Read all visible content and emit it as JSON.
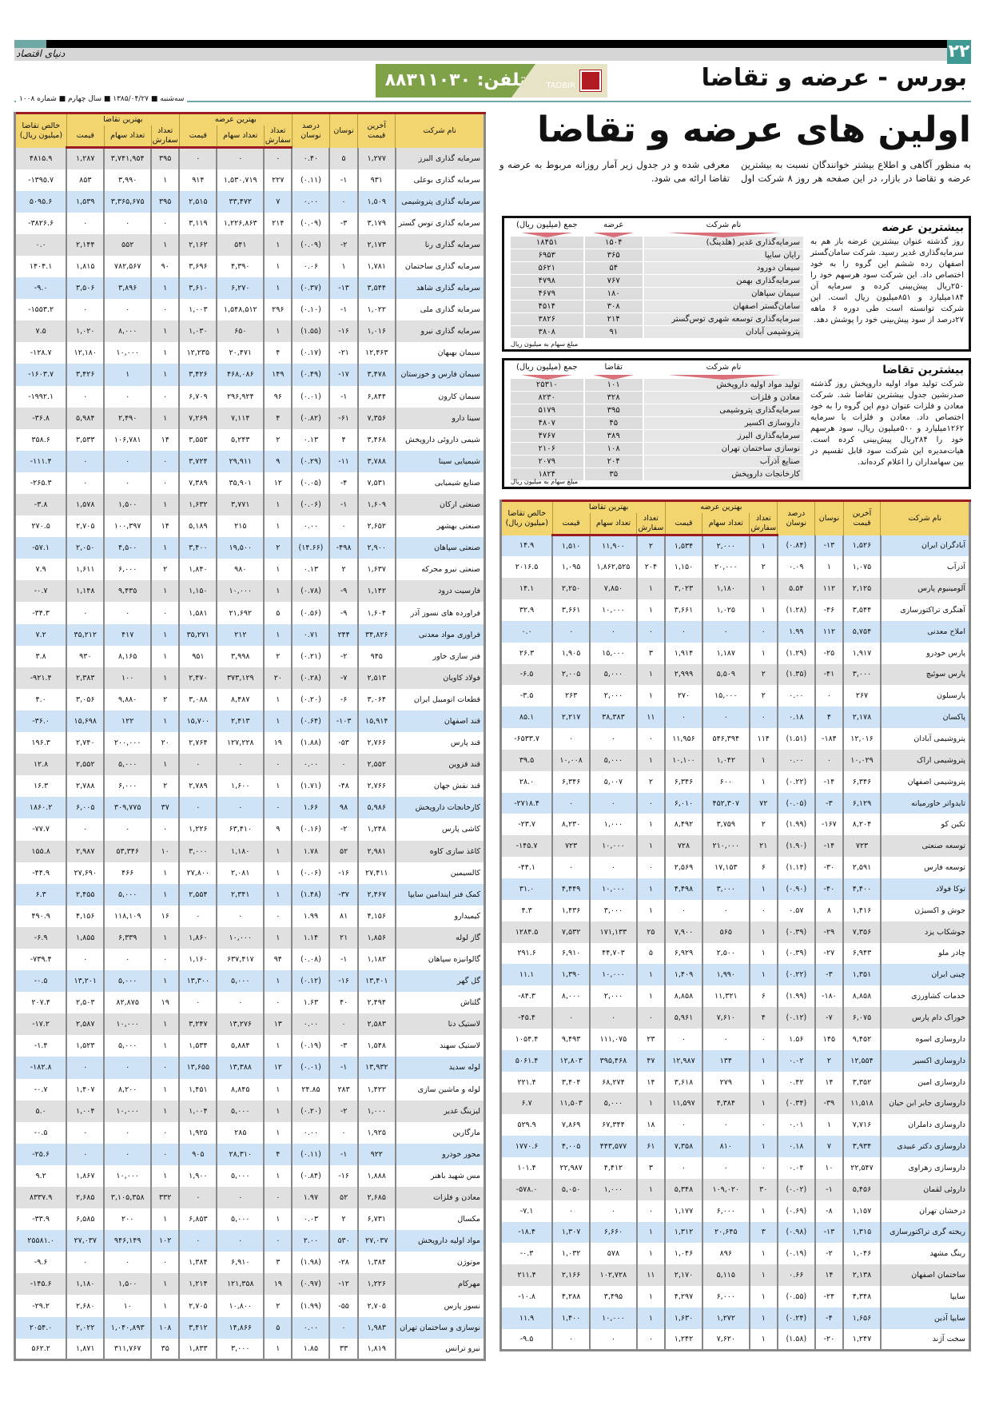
{
  "header": {
    "page_number": "۲۲",
    "logo": "دنیای اقتصاد",
    "section_title": "بورس - عرضه و تقاضا",
    "phone": "تلفن: ۸۸۳۱۱۰۳۰",
    "sponsor": "TADBIR",
    "issue": "سه‌شنبه ■ ۱۳۸۵/۰۴/۲۷ ■ سال چهارم ■ شماره ۱۰۰۸"
  },
  "headline": "اولین های عرضه و تقاضا",
  "intro": "به منظور آگاهی و اطلاع بیشتر خوانندگان نسبت به بیشترین عرضه و تقاضا در بازار، در این صفحه هر روز ۸ شرکت اول معرفی شده و در جدول زیر آمار روزانه مربوط به عرضه و تقاضا ارائه می شود.",
  "colors": {
    "accent": "#3f9a94",
    "header_yellow": "#f2d56e",
    "header_border": "#9b1c22",
    "row_gray": "#e0e0e0",
    "row_blue": "#cfe3f6",
    "banner_green": "#7fa248"
  },
  "supply_box": {
    "title": "بیشترین عرضه",
    "text": "روز گذشته عنوان بیشترین عرضه باز هم به سرمایه‌گذاری غدیر رسید. شرکت سامان‌گستر اصفهان رده ششم این گروه را به خود اختصاص داد. این شرکت سود هرسهم خود را ۲۵۰ریال پیش‌بینی کرده و سرمایه آن ۱۸۴میلیارد و ۸۵۱میلیون ریال است. این شرکت توانسته است طی دوره ۶ ماهه ۲۷درصد از سود پیش‌بینی خود را پوشش دهد.",
    "note": "مبلغ سهام به میلیون ریال",
    "columns": [
      "نام شرکت",
      "عرضه",
      "جمع (میلیون ریال)"
    ],
    "rows": [
      [
        "سرمایه‌گذاری غدیر (هلدینگ)",
        "۱۵۰۴",
        "۱۸۴۵۱"
      ],
      [
        "رایان سایپا",
        "۳۶۵",
        "۶۹۵۳"
      ],
      [
        "سیمان دورود",
        "۵۴",
        "۵۶۲۱"
      ],
      [
        "سرمایه‌گذاری بهمن",
        "۷۶۷",
        "۴۷۹۸"
      ],
      [
        "سیمان سپاهان",
        "۱۸۰",
        "۴۶۷۹"
      ],
      [
        "سامان‌گستر اصفهان",
        "۳۰۸",
        "۴۵۱۴"
      ],
      [
        "سرمایه‌گذاری توسعه شهری توس‌گستر",
        "۲۱۴",
        "۳۸۲۶"
      ],
      [
        "پتروشیمی آبادان",
        "۹۱",
        "۳۸۰۸"
      ]
    ]
  },
  "demand_box": {
    "title": "بیشترین تقاضا",
    "text": "شرکت تولید مواد اولیه داروپخش روز گذشته صدرنشین جدول بیشترین تقاضا شد. شرکت معادن و فلزات عنوان دوم این گروه را به خود اختصاص داد. معادن و فلزات با سرمایه ۱۲۶۲میلیارد و ۵۰۰میلیون ریال، سود هرسهم خود را ۲۸۴ریال پیش‌بینی کرده است. هیات‌مدیره این شرکت سود قابل تقسیم در بین سهامداران را اعلام کرده‌اند.",
    "note": "مبلغ سهام به میلیون ریال",
    "columns": [
      "نام شرکت",
      "تقاضا",
      "جمع (میلیون ریال)"
    ],
    "rows": [
      [
        "تولید مواد اولیه داروپخش",
        "۱۰۱",
        "۲۵۳۱۰"
      ],
      [
        "معادن و فلزات",
        "۳۲۸",
        "۸۲۳۰"
      ],
      [
        "سرمایه‌گذاری پتروشیمی",
        "۳۹۵",
        "۵۱۷۹"
      ],
      [
        "داروسازی اکسیر",
        "۴۵",
        "۴۸۰۷"
      ],
      [
        "سرمایه‌گذاری البرز",
        "۳۸۹",
        "۴۷۶۷"
      ],
      [
        "نوسازی ساختمان تهران",
        "۱۰۸",
        "۲۱۰۶"
      ],
      [
        "صنایع آذرآب",
        "۲۰۴",
        "۲۰۷۹"
      ],
      [
        "کارخانجات داروپخش",
        "۳۵",
        "۱۸۲۴"
      ]
    ]
  },
  "table_headers": {
    "name": "نام شرکت",
    "last_price": "آخرین قیمت",
    "change": "نوسان",
    "change_pct": "درصد نوسان",
    "best_supply": "بهترین عرضه",
    "best_demand": "بهترین تقاضا",
    "order_count": "تعداد سفارش",
    "share_count": "تعداد سهام",
    "price": "قیمت",
    "net_demand": "خالص تقاضا (میلیون ریال)"
  },
  "left_table": [
    [
      "سرمایه گذاری البرز",
      "۱,۲۷۷",
      "۵",
      "۰.۴۰",
      "۰",
      "۰",
      "۰",
      "۳۹۵",
      "۳,۷۴۱,۹۵۴",
      "۱,۲۸۷",
      "۴۸۱۵.۹"
    ],
    [
      "سرمایه گذاری بوعلی",
      "۹۳۱",
      "-۱",
      "(۰.۱۱)",
      "۲۲۷",
      "۱,۵۳۰,۷۱۹",
      "۹۱۴",
      "۱",
      "۳,۹۹۰",
      "۸۵۳",
      "-۱۳۹۵.۷"
    ],
    [
      "سرمایه گذاری پتروشیمی",
      "۱,۵۰۹",
      "۰",
      "۰.۰۰",
      "۷",
      "۳۳,۴۷۲",
      "۲,۵۱۵",
      "۳۹۵",
      "۳,۳۶۵,۶۷۵",
      "۱,۵۳۹",
      "۵۰۹۵.۶"
    ],
    [
      "سرمایه گذاری توس گستر",
      "۳,۱۷۹",
      "-۳",
      "(۰.۰۹)",
      "۲۱۴",
      "۱,۲۲۶,۸۶۳",
      "۳,۱۱۹",
      "۰",
      "۰",
      "۰",
      "-۳۸۲۶.۶"
    ],
    [
      "سرمایه گذاری رنا",
      "۲,۱۷۳",
      "-۲",
      "(۰.۰۹)",
      "۱",
      "۵۴۱",
      "۲,۱۶۲",
      "۱",
      "۵۵۲",
      "۲,۱۴۴",
      "۰.۰"
    ],
    [
      "سرمایه گذاری ساختمان",
      "۱,۷۸۱",
      "۱",
      "۰.۰۶",
      "۱",
      "۴,۳۹۰",
      "۳,۶۹۶",
      "۹۰",
      "۷۸۲,۵۶۷",
      "۱,۸۱۵",
      "۱۴۰۴.۱"
    ],
    [
      "سرمایه گذاری شاهد",
      "۳,۵۴۴",
      "-۱۳",
      "(۰.۳۷)",
      "۱",
      "۶,۲۷۰",
      "۳,۶۱۰",
      "۱",
      "۳,۸۹۶",
      "۳,۵۰۶",
      "-۹.۰"
    ],
    [
      "سرمایه گذاری ملی",
      "۱,۰۲۲",
      "-۱",
      "(۰.۱۰)",
      "۲۹۶",
      "۱,۵۴۸,۵۱۲",
      "۱,۰۰۳",
      "۰",
      "۰",
      "۰",
      "-۱۵۵۳.۲"
    ],
    [
      "سرمایه گذاری نیرو",
      "۱,۰۱۶",
      "-۱۶",
      "(۱.۵۵)",
      "۱",
      "۶۵۰",
      "۱,۰۳۰",
      "۱",
      "۸,۰۰۰",
      "۱,۰۲۰",
      "۷.۵"
    ],
    [
      "سیمان بهبهان",
      "۱۲,۴۶۳",
      "-۲۱",
      "(۰.۱۷)",
      "۴",
      "۲۰,۴۷۱",
      "۱۲,۲۳۵",
      "۱",
      "۱۰,۰۰۰",
      "۱۲,۱۸۰",
      "-۱۲۸.۷"
    ],
    [
      "سیمان فارس و خوزستان",
      "۳,۴۷۸",
      "-۱۷",
      "(۰.۴۹)",
      "۱۴۹",
      "۴۶۸,۰۸۶",
      "۳,۴۲۶",
      "۱",
      "۱",
      "۳,۴۲۶",
      "-۱۶۰۳.۷"
    ],
    [
      "سیمان کارون",
      "۶,۸۴۴",
      "-۱",
      "(۰.۰۱)",
      "۹۶",
      "۲۹۶,۹۲۴",
      "۶,۷۰۹",
      "۰",
      "۰",
      "۰",
      "-۱۹۹۲.۱"
    ],
    [
      "سینا دارو",
      "۷,۳۵۶",
      "-۶۱",
      "(۰.۸۲)",
      "۴",
      "۷,۱۱۴",
      "۷,۲۶۹",
      "۱",
      "۲,۴۹۰",
      "۵,۹۸۴",
      "-۳۶.۸"
    ],
    [
      "شیمی داروئی داروپخش",
      "۳,۴۶۸",
      "۴",
      "۰.۱۳",
      "۲",
      "۵,۲۴۳",
      "۳,۵۵۳",
      "۱۴",
      "۱۰۶,۷۸۱",
      "۳,۵۳۳",
      "۳۵۸.۶"
    ],
    [
      "شیمیایی سینا",
      "۳,۷۸۸",
      "-۱۱",
      "(۰.۲۹)",
      "۹",
      "۲۹,۹۱۱",
      "۳,۷۲۴",
      "۰",
      "۰",
      "۰",
      "-۱۱۱.۴"
    ],
    [
      "صنایع شیمیایی",
      "۷,۵۳۱",
      "-۴",
      "(۰.۰۵)",
      "۱۲",
      "۳۵,۹۰۱",
      "۷,۳۸۹",
      "۰",
      "۰",
      "۰",
      "-۲۶۵.۳"
    ],
    [
      "صنعتی ارکان",
      "۱,۶۰۹",
      "-۱",
      "(۰.۰۶)",
      "۱",
      "۳,۷۷۱",
      "۱,۶۳۲",
      "۱",
      "۱,۵۰۰",
      "۱,۵۷۸",
      "-۳.۸"
    ],
    [
      "صنعتی بهشهر",
      "۲,۶۵۲",
      "۰",
      "۰.۰۰",
      "۱",
      "۲۱۵",
      "۵,۱۸۹",
      "۱۴",
      "۱۰۰,۳۹۷",
      "۲,۷۰۵",
      "۲۷۰.۵"
    ],
    [
      "صنعتی سپاهان",
      "۲,۹۰۰",
      "-۴۹۸",
      "(۱۴.۶۶)",
      "۲",
      "۱۹,۵۰۰",
      "۳,۴۰۰",
      "۱",
      "۴,۵۰۰",
      "۲,۰۵۰",
      "-۵۷.۱"
    ],
    [
      "صنعتی نیرو محرکه",
      "۱,۶۳۷",
      "۲",
      "۰.۱۳",
      "۱",
      "۹۸۰",
      "۱,۸۴۰",
      "۲",
      "۶,۰۰۰",
      "۱,۶۱۱",
      "۷.۹"
    ],
    [
      "فارسیت درود",
      "۱,۱۴۲",
      "-۹",
      "(۰.۷۸)",
      "۱",
      "۱۰,۰۰۰",
      "۱,۱۵۰",
      "۱",
      "۹,۴۳۵",
      "۱,۱۴۸",
      "-۰.۷"
    ],
    [
      "فراورده های نسوز آذر",
      "۱,۶۰۴",
      "-۹",
      "(۰.۵۶)",
      "۵",
      "۲۱,۶۹۲",
      "۱,۵۸۱",
      "۰",
      "۰",
      "۰",
      "-۳۴.۳"
    ],
    [
      "فراوری مواد معدنی",
      "۳۴,۸۲۶",
      "۲۴۴",
      "۰.۷۱",
      "۱",
      "۲۱۲",
      "۳۵,۲۷۱",
      "۱",
      "۴۱۷",
      "۳۵,۲۱۲",
      "۷.۲"
    ],
    [
      "فنر سازی خاور",
      "۹۴۵",
      "-۲",
      "(۰.۲۱)",
      "۲",
      "۳,۹۹۸",
      "۹۵۱",
      "۱",
      "۸,۱۶۵",
      "۹۳۰",
      "۳.۸"
    ],
    [
      "فولاد کاویان",
      "۲,۵۱۳",
      "-۷",
      "(۰.۲۸)",
      "۲۰",
      "۳۷۳,۱۲۹",
      "۲,۴۷۰",
      "۱",
      "۱۰۰",
      "۲,۳۸۳",
      "-۹۲۱.۴"
    ],
    [
      "قطعات اتومبیل ایران",
      "۳,۰۶۴",
      "-۶",
      "(۰.۲۰)",
      "۱",
      "۸,۴۸۷",
      "۳,۰۸۸",
      "۲",
      "۹,۸۸۰",
      "۳,۰۵۶",
      "۴.۰"
    ],
    [
      "قند اصفهان",
      "۱۵,۹۱۴",
      "-۱۰۳",
      "(۰.۶۴)",
      "۱",
      "۲,۴۱۳",
      "۱۵,۷۰۰",
      "۱",
      "۱۲۲",
      "۱۵,۶۹۸",
      "-۳۶.۰"
    ],
    [
      "قند پارس",
      "۲,۷۶۶",
      "-۵۳",
      "(۱.۸۸)",
      "۱۹",
      "۱۲۷,۲۲۸",
      "۲,۷۶۴",
      "۲۰",
      "۲۰۰,۰۰۰",
      "۲,۷۴۰",
      "۱۹۶.۳"
    ],
    [
      "قند قزوین",
      "۲,۵۵۲",
      "۰",
      "۰.۰۰",
      "۰",
      "۰",
      "۰",
      "۱",
      "۵,۰۰۰",
      "۲,۵۵۲",
      "۱۲.۸"
    ],
    [
      "قند نقش جهان",
      "۲,۷۶۶",
      "-۴۸",
      "(۱.۷۱)",
      "۱",
      "۱,۶۰۰",
      "۲,۷۸۹",
      "۲",
      "۶,۰۰۰",
      "۲,۷۸۸",
      "۱۶.۳"
    ],
    [
      "کارخانجات داروپخش",
      "۵,۹۸۶",
      "۹۸",
      "۱.۶۶",
      "۰",
      "۰",
      "۰",
      "۳۷",
      "۳۰۹,۷۷۵",
      "۶,۰۰۵",
      "۱۸۶۰.۲"
    ],
    [
      "کاشی پارس",
      "۱,۲۴۸",
      "-۲",
      "(۰.۱۶)",
      "۹",
      "۶۳,۴۱۰",
      "۱,۲۲۶",
      "۰",
      "۰",
      "۰",
      "-۷۷.۷"
    ],
    [
      "کاغذ سازی کاوه",
      "۲,۹۸۱",
      "۵۲",
      "۱.۷۸",
      "۱",
      "۱,۱۸۰",
      "۳,۰۰۰",
      "۱۰",
      "۵۳,۳۴۶",
      "۲,۹۸۷",
      "۱۵۵.۸"
    ],
    [
      "کالسیمین",
      "۲۷,۴۱۱",
      "-۱۶",
      "(۰.۰۶)",
      "۱",
      "۲,۰۸۱",
      "۲۷,۸۰۰",
      "۱",
      "۴۶۶",
      "۲۷,۶۹۰",
      "-۴۴.۹"
    ],
    [
      "کمک فنر ایندامین سایپا",
      "۲,۴۶۷",
      "-۳۷",
      "(۱.۴۸)",
      "۱",
      "۲,۳۴۱",
      "۲,۵۵۴",
      "۱",
      "۵,۰۰۰",
      "۲,۴۵۵",
      "۶.۳"
    ],
    [
      "کیمیدارو",
      "۴,۱۵۶",
      "۸۱",
      "۱.۹۹",
      "۰",
      "۰",
      "۰",
      "۱۶",
      "۱۱۸,۱۰۹",
      "۴,۱۵۶",
      "۴۹۰.۹"
    ],
    [
      "گاز لوله",
      "۱,۸۵۶",
      "۲۱",
      "۱.۱۴",
      "۱",
      "۱۰,۰۰۰",
      "۱,۸۶۰",
      "۱",
      "۶,۳۳۹",
      "۱,۸۵۵",
      "-۶.۹"
    ],
    [
      "گالوانیزه سپاهان",
      "۱,۱۸۲",
      "-۱",
      "(۰.۰۸)",
      "۹۴",
      "۶۳۷,۴۱۷",
      "۱,۱۶۰",
      "۰",
      "۰",
      "۰",
      "-۷۳۹.۴"
    ],
    [
      "گل گهر",
      "۱۳,۴۰۱",
      "-۱۶",
      "(۰.۱۲)",
      "۱",
      "۵,۰۰۰",
      "۱۳,۳۰۰",
      "۱",
      "۵,۰۰۰",
      "۱۳,۲۰۱",
      "-۰.۵"
    ],
    [
      "گلتاش",
      "۲,۴۹۴",
      "۴۰",
      "۱.۶۳",
      "۰",
      "۰",
      "۰",
      "۱۹",
      "۸۲,۸۷۵",
      "۲,۵۰۳",
      "۲۰۷.۴"
    ],
    [
      "لاستیک دنا",
      "۲,۵۸۳",
      "۰",
      "۰.۰۰",
      "۱۳",
      "۱۳,۲۷۶",
      "۳,۲۴۷",
      "۱",
      "۱۰,۰۰۰",
      "۲,۵۸۷",
      "-۱۷.۲"
    ],
    [
      "لاستیک سهند",
      "۱,۵۴۸",
      "-۳",
      "(۰.۱۹)",
      "۱",
      "۵,۸۸۴",
      "۱,۵۳۴",
      "۱",
      "۵,۰۰۰",
      "۱,۵۲۳",
      "-۱.۴"
    ],
    [
      "لوله سدید",
      "۱۳,۹۳۲",
      "-۱",
      "(۰.۰۱)",
      "۱۲",
      "۱۳,۳۸۸",
      "۱۳,۶۵۵",
      "۰",
      "۰",
      "۰",
      "-۱۸۲.۸"
    ],
    [
      "لوله و ماشین سازی",
      "۱,۴۲۲",
      "۲۸۳",
      "۲۴.۸۵",
      "۱",
      "۸,۸۴۵",
      "۱,۴۵۱",
      "۱",
      "۸,۲۰۰",
      "۱,۴۰۷",
      "-۰.۷"
    ],
    [
      "لیزینگ غدیر",
      "۱,۰۰۰",
      "-۲",
      "(۰.۲۰)",
      "۱",
      "۵,۰۰۰",
      "۱,۰۰۴",
      "۱",
      "۱۰,۰۰۰",
      "۱,۰۰۴",
      "۵.۰"
    ],
    [
      "مارگارین",
      "۱,۹۲۵",
      "۰",
      "۰.۰۰",
      "۱",
      "۲۸۵",
      "۱,۹۲۵",
      "۰",
      "۰",
      "۰",
      "-۰.۵"
    ],
    [
      "محور خودرو",
      "۹۲۲",
      "-۱",
      "(۰.۱۱)",
      "۴",
      "۲۸,۳۱۰",
      "۹۰۵",
      "۰",
      "۰",
      "۰",
      "-۲۵.۶"
    ],
    [
      "مس شهید باهنر",
      "۱,۸۸۸",
      "-۱۶",
      "(۰.۸۴)",
      "۱",
      "۵,۰۰۰",
      "۱,۹۰۰",
      "۱",
      "۱۰,۰۰۰",
      "۱,۸۶۷",
      "۹.۲"
    ],
    [
      "معادن و فلزات",
      "۲,۶۸۵",
      "۵۲",
      "۱.۹۷",
      "۰",
      "۰",
      "۰",
      "۳۳۲",
      "۳,۱۰۵,۳۵۸",
      "۲,۶۸۵",
      "۸۳۳۷.۹"
    ],
    [
      "مکسال",
      "۶,۷۳۱",
      "۲",
      "۰.۰۳",
      "۱",
      "۵,۰۰۰",
      "۶,۸۵۳",
      "۱",
      "۲۰۰",
      "۶,۵۸۵",
      "-۳۳.۹"
    ],
    [
      "مواد اولیه داروپخش",
      "۲۷,۰۳۷",
      "۵۳۰",
      "۲.۰۰",
      "۰",
      "۰",
      "۰",
      "۱۰۲",
      "۹۴۶,۱۴۹",
      "۲۷,۰۳۷",
      "۲۵۵۸۱.۰"
    ],
    [
      "موتوژن",
      "۱,۳۸۴",
      "-۲۸",
      "(۱.۹۸)",
      "۳",
      "۶,۹۱۰",
      "۱,۳۸۴",
      "۰",
      "۰",
      "۰",
      "-۹.۶"
    ],
    [
      "مهرکام",
      "۱,۲۲۶",
      "-۱۲",
      "(۰.۹۷)",
      "۱۹",
      "۱۲۱,۳۵۸",
      "۱,۲۱۴",
      "۱",
      "۱,۵۰۰",
      "۱,۱۸۰",
      "-۱۴۵.۶"
    ],
    [
      "نسوز پارس",
      "۲,۷۰۵",
      "-۵۵",
      "(۱.۹۹)",
      "۲",
      "۱۰,۸۰۰",
      "۲,۷۰۵",
      "۱",
      "۱۰",
      "۲,۶۸۰",
      "-۲۹.۲"
    ],
    [
      "نوسازی و ساختمان تهران",
      "۱,۹۸۳",
      "۰",
      "۰.۰۰",
      "۵",
      "۱۴,۸۶۶",
      "۳,۴۱۲",
      "۱۰۸",
      "۱,۰۴۰,۸۹۳",
      "۲,۰۲۲",
      "۲۰۵۴.۰"
    ],
    [
      "نیرو ترانس",
      "۱,۸۱۹",
      "۳۳",
      "۱.۸۵",
      "۱",
      "۳,۰۰۰",
      "۱,۸۳۳",
      "۳۵",
      "۳۱۱,۷۶۷",
      "۱,۸۷۱",
      "۵۶۲.۲"
    ]
  ],
  "right_table": [
    [
      "آبادگران ایران",
      "۱,۵۲۶",
      "-۱۳",
      "(۰.۸۴)",
      "۱",
      "۲,۰۰۰",
      "۱,۵۳۴",
      "۲",
      "۱۱,۹۰۰",
      "۱,۵۱۰",
      "۱۴.۹"
    ],
    [
      "آذرآب",
      "۱,۰۷۵",
      "۱",
      "۰.۰۹",
      "۲",
      "۲۰,۰۰۰",
      "۱,۱۵۰",
      "۲۰۴",
      "۱,۸۶۲,۵۲۵",
      "۱,۰۹۵",
      "۲۰۱۶.۵"
    ],
    [
      "آلومینیوم پارس",
      "۲,۱۲۵",
      "۱۱۲",
      "۵.۵۴",
      "۱",
      "۱,۱۸۰",
      "۳,۰۲۳",
      "۱",
      "۷,۸۵۰",
      "۲,۲۵۰",
      "۱۴.۱"
    ],
    [
      "آهنگری تراکتورسازی",
      "۳,۵۴۴",
      "-۴۶",
      "(۱.۲۸)",
      "۱",
      "۱,۰۲۵",
      "۳,۶۶۱",
      "۱",
      "۱۰,۰۰۰",
      "۳,۶۶۱",
      "۳۲.۹"
    ],
    [
      "املاح معدنی",
      "۵,۷۵۴",
      "۱۱۲",
      "۱.۹۹",
      "۰",
      "۰",
      "۰",
      "۰",
      "۰",
      "۰",
      "۰.۰"
    ],
    [
      "پارس خودرو",
      "۱,۹۱۷",
      "-۲۵",
      "(۱.۲۹)",
      "۱",
      "۱,۱۸۷",
      "۱,۹۱۴",
      "۳",
      "۱۵,۰۰۰",
      "۱,۹۰۵",
      "۲۶.۳"
    ],
    [
      "پارس سوئیچ",
      "۳,۰۰۰",
      "-۴۱",
      "(۱.۳۵)",
      "۲",
      "۵,۵۰۹",
      "۲,۹۹۹",
      "۱",
      "۵,۰۰۰",
      "۲,۰۰۵",
      "-۶.۵"
    ],
    [
      "پارسیلون",
      "۲۶۷",
      "۰",
      "۰.۰۰",
      "۲",
      "۱۵,۰۰۰",
      "۲۷۰",
      "۱",
      "۲,۰۰۰",
      "۲۶۳",
      "-۳.۵"
    ],
    [
      "پاکسان",
      "۲,۱۷۸",
      "۴",
      "۰.۱۸",
      "۰",
      "۰",
      "۰",
      "۱۱",
      "۳۸,۳۸۳",
      "۲,۲۱۷",
      "۸۵.۱"
    ],
    [
      "پتروشیمی آبادان",
      "۱۲,۰۱۶",
      "-۱۸۴",
      "(۱.۵۱)",
      "۱۱۴",
      "۵۴۶,۳۹۴",
      "۱۱,۹۵۶",
      "۰",
      "۰",
      "۰",
      "-۶۵۳۳.۷"
    ],
    [
      "پتروشیمی اراک",
      "۱۰,۰۲۹",
      "۰",
      "۰.۰۰",
      "۱",
      "۱,۰۴۲",
      "۱۰,۱۰۰",
      "۱",
      "۵,۰۰۰",
      "۱۰,۰۰۸",
      "۳۹.۵"
    ],
    [
      "پتروشیمی اصفهان",
      "۶,۳۴۶",
      "-۱۴",
      "(۰.۲۲)",
      "۱",
      "۶۰۰",
      "۶,۳۴۶",
      "۲",
      "۵,۰۰۷",
      "۶,۳۴۶",
      "۲۸.۰"
    ],
    [
      "تایدواتر خاورمیانه",
      "۶,۱۲۹",
      "-۳",
      "(۰.۰۵)",
      "۷۲",
      "۴۵۲,۳۰۷",
      "۶,۰۱۰",
      "۰",
      "۰",
      "۰",
      "-۲۷۱۸.۴"
    ],
    [
      "تکین کو",
      "۸,۲۰۴",
      "-۱۶۷",
      "(۱.۹۹)",
      "۲",
      "۳,۷۵۹",
      "۸,۴۹۲",
      "۱",
      "۱,۰۰۰",
      "۸,۲۳۰",
      "-۲۳.۷"
    ],
    [
      "توسعه صنعتی",
      "۷۲۳",
      "-۱۴",
      "(۱.۹۰)",
      "۲۱",
      "۲۱۰,۰۰۰",
      "۷۲۸",
      "۱",
      "۱۰,۰۰۰",
      "۷۲۳",
      "-۱۴۵.۷"
    ],
    [
      "توسعه فارس",
      "۲,۵۹۱",
      "-۳۰",
      "(۱.۱۴)",
      "۶",
      "۱۷,۱۵۳",
      "۲,۵۶۹",
      "۰",
      "۰",
      "۰",
      "-۴۴.۱"
    ],
    [
      "توکا فولاد",
      "۴,۴۰۰",
      "-۴۰",
      "(۰.۹۰)",
      "۱",
      "۳,۰۰۰",
      "۴,۴۹۸",
      "۱",
      "۱۰,۰۰۰",
      "۴,۴۴۹",
      "۳۱.۰"
    ],
    [
      "جوش و اکسیژن",
      "۱,۴۱۶",
      "۸",
      "۰.۵۷",
      "۰",
      "۰",
      "۰",
      "۱",
      "۳,۰۰۰",
      "۱,۴۳۶",
      "۴.۳"
    ],
    [
      "جوشکاب یزد",
      "۷,۳۵۶",
      "-۲۹",
      "(۰.۳۹)",
      "۱",
      "۵۶۵",
      "۷,۹۰۰",
      "۲۵",
      "۱۷۱,۱۳۳",
      "۷,۵۳۲",
      "۱۲۸۴.۵"
    ],
    [
      "چادر ملو",
      "۶,۹۴۳",
      "-۲۷",
      "(۰.۳۹)",
      "۱",
      "۲,۵۰۰",
      "۶,۹۲۹",
      "۵",
      "۴۴,۷۰۳",
      "۶,۹۱۰",
      "۲۹۱.۶"
    ],
    [
      "چینی ایران",
      "۱,۳۵۱",
      "-۳",
      "(۰.۲۲)",
      "۱",
      "۱,۹۹۰",
      "۱,۴۰۹",
      "۱",
      "۱۰,۰۰۰",
      "۱,۳۹۰",
      "۱۱.۱"
    ],
    [
      "خدمات کشاورزی",
      "۸,۸۵۸",
      "-۱۸۰",
      "(۱.۹۹)",
      "۶",
      "۱۱,۳۲۱",
      "۸,۸۵۸",
      "۱",
      "۲,۰۰۰",
      "۸,۰۰۰",
      "-۸۴.۳"
    ],
    [
      "خوراک دام پارس",
      "۶,۰۷۵",
      "-۷",
      "(۰.۱۲)",
      "۴",
      "۷,۶۱۰",
      "۵,۹۶۱",
      "۰",
      "۰",
      "۰",
      "-۴۵.۴"
    ],
    [
      "داروسازی اسوه",
      "۹,۴۵۲",
      "۱۴۵",
      "۱.۵۶",
      "۰",
      "۰",
      "۰",
      "۲۳",
      "۱۱۱,۰۷۵",
      "۹,۴۹۳",
      "۱۰۵۴.۴"
    ],
    [
      "داروسازی اکسیر",
      "۱۲,۵۵۴",
      "۲",
      "۰.۰۲",
      "۱",
      "۱۳۴",
      "۱۲,۹۸۷",
      "۴۷",
      "۳۹۵,۴۶۸",
      "۱۲,۸۰۳",
      "۵۰۶۱.۴"
    ],
    [
      "داروسازی امین",
      "۳,۳۵۲",
      "۱۴",
      "۰.۴۲",
      "۱",
      "۲۷۹",
      "۳,۶۱۸",
      "۱۴",
      "۶۸,۲۷۴",
      "۳,۴۰۴",
      "۲۲۱.۴"
    ],
    [
      "داروسازی جابر ابن حیان",
      "۱۱,۵۱۸",
      "-۳۹",
      "(۰.۳۴)",
      "۱",
      "۴,۳۸۴",
      "۱۱,۵۹۷",
      "۱",
      "۵,۰۰۰",
      "۱۱,۵۰۳",
      "۶.۷"
    ],
    [
      "داروسازی داملران",
      "۷,۷۱۶",
      "۱",
      "۰.۰۱",
      "۰",
      "۰",
      "۰",
      "۱۸",
      "۶۷,۳۴۴",
      "۷,۸۶۹",
      "۵۲۹.۹"
    ],
    [
      "داروسازی دکتر عبیدی",
      "۳,۹۳۴",
      "۷",
      "۰.۱۸",
      "۱",
      "۸۱۰",
      "۷,۳۵۸",
      "۶۱",
      "۴۴۳,۵۷۷",
      "۴,۰۰۵",
      "۱۷۷۰.۶"
    ],
    [
      "داروسازی زهراوی",
      "۲۲,۵۴۷",
      "۱۰",
      "۰.۰۴",
      "۰",
      "۰",
      "۰",
      "۳",
      "۴,۴۱۲",
      "۲۲,۹۸۷",
      "۱۰۱.۴"
    ],
    [
      "داروئی لقمان",
      "۵,۴۵۶",
      "-۱",
      "(۰.۰۲)",
      "۳۰",
      "۱۰۹,۰۲۰",
      "۵,۳۴۸",
      "۱",
      "۱,۰۰۰",
      "۵,۰۵۰",
      "-۵۷۸.۰"
    ],
    [
      "درخشان تهران",
      "۱,۱۵۷",
      "-۸",
      "(۰.۶۹)",
      "۱",
      "۶,۰۰۰",
      "۱,۱۷۷",
      "۰",
      "۰",
      "۰",
      "-۷.۱"
    ],
    [
      "ریخته گری تراکتورسازی",
      "۱,۳۱۵",
      "-۱۳",
      "(۰.۹۸)",
      "۳",
      "۲۰,۶۴۵",
      "۱,۳۱۲",
      "۱",
      "۶,۶۶۰",
      "۱,۳۰۷",
      "-۱۸.۴"
    ],
    [
      "رینگ مشهد",
      "۱,۰۴۶",
      "-۲",
      "(۰.۱۹)",
      "۱",
      "۸۹۶",
      "۱,۰۴۶",
      "۱",
      "۵۷۸",
      "۱,۰۳۲",
      "-۰.۳"
    ],
    [
      "ساختمان اصفهان",
      "۲,۱۳۸",
      "۱۴",
      "۰.۶۶",
      "۱",
      "۵,۱۱۵",
      "۲,۱۷۰",
      "۱۱",
      "۱۰۲,۷۲۸",
      "۲,۱۶۶",
      "۲۱۱.۴"
    ],
    [
      "سایپا",
      "۴,۳۴۸",
      "-۲۴",
      "(۰.۵۵)",
      "۱",
      "۶,۰۰۰",
      "۴,۲۹۷",
      "۱",
      "۳,۴۹۵",
      "۴,۲۸۸",
      "-۱۰.۸"
    ],
    [
      "سایپا آذین",
      "۱,۶۵۶",
      "-۴",
      "(۰.۲۴)",
      "۱",
      "۱,۲۷۲",
      "۱,۶۳۰",
      "۱",
      "۱۰,۰۰۰",
      "۱,۴۰۰",
      "۱۱.۹"
    ],
    [
      "سخت آژند",
      "۱,۲۴۷",
      "-۲۰",
      "(۱.۵۸)",
      "۱",
      "۷,۶۲۰",
      "۱,۲۴۲",
      "۰",
      "۰",
      "۰",
      "-۹.۵"
    ]
  ]
}
